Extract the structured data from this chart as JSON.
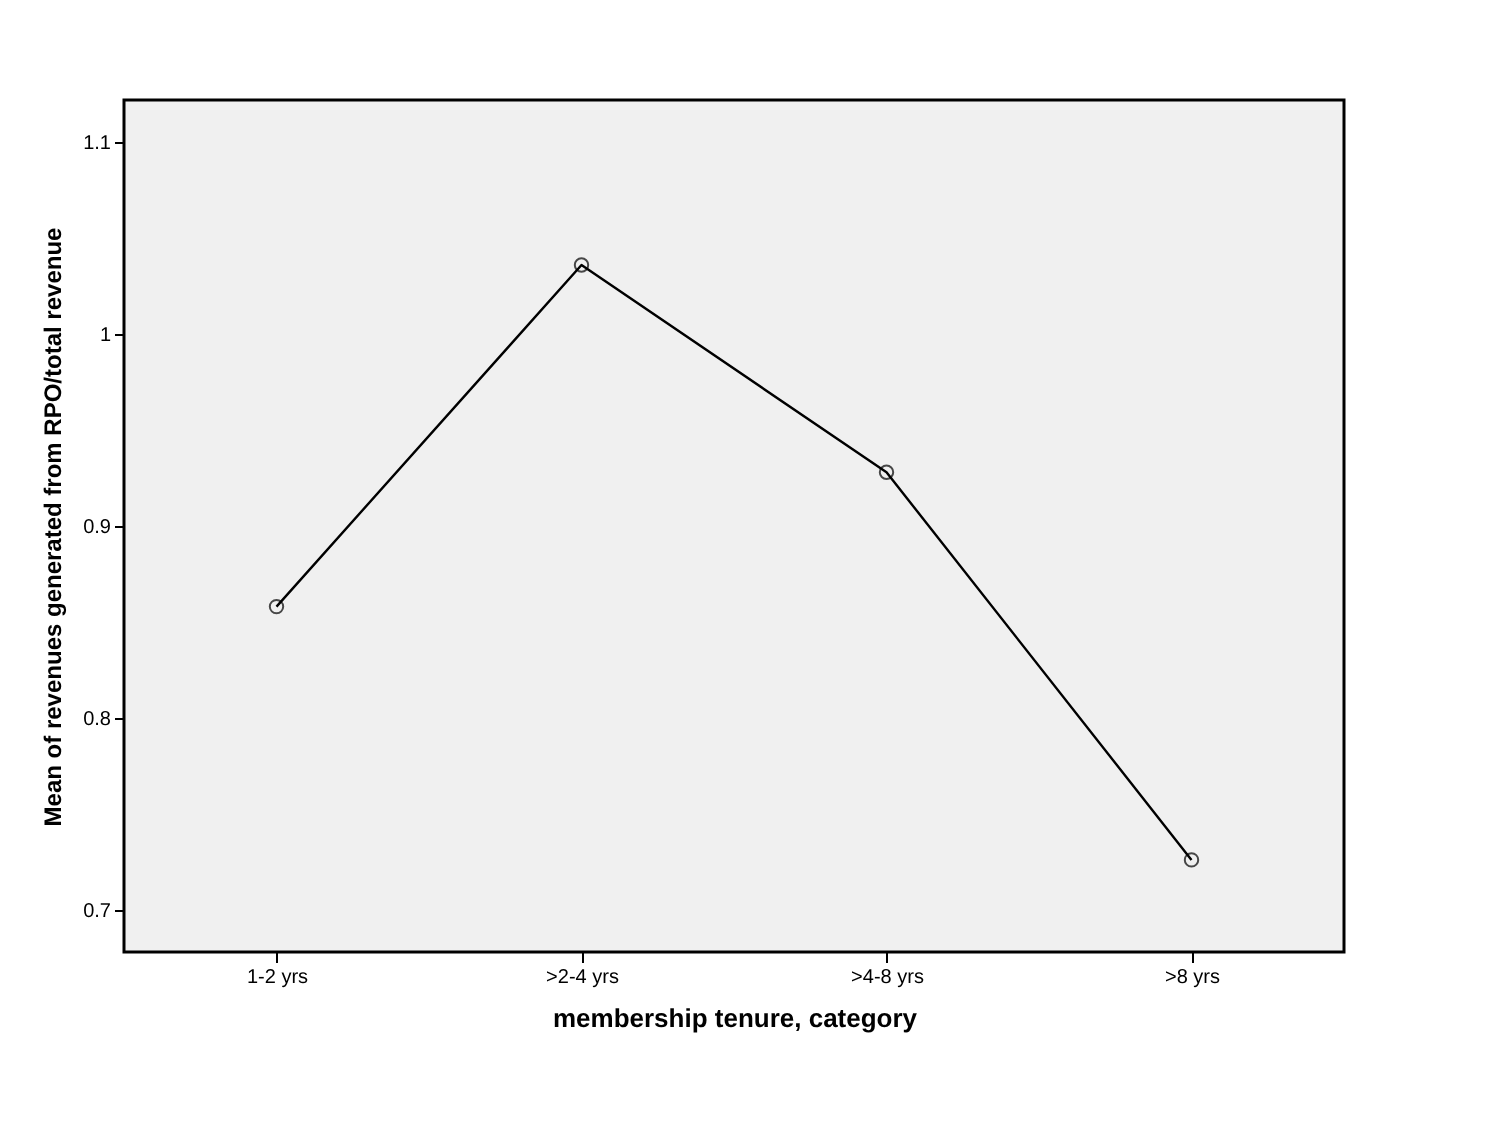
{
  "chart_data": {
    "type": "line",
    "xlabel": "membership tenure, category",
    "ylabel": "Mean of revenues generated from RPO/total revenue",
    "categories": [
      "1-2 yrs",
      ">2-4 yrs",
      ">4-8 yrs",
      ">8 yrs"
    ],
    "series": [
      {
        "color": "#000000",
        "values": [
          0.858,
          1.036,
          0.928,
          0.726
        ]
      }
    ],
    "ylim": [
      0.678,
      1.122
    ],
    "yticks": [
      0.7,
      0.8,
      0.9,
      1,
      1.1
    ],
    "grid": false,
    "marker": "circle",
    "line_style": "solid"
  }
}
